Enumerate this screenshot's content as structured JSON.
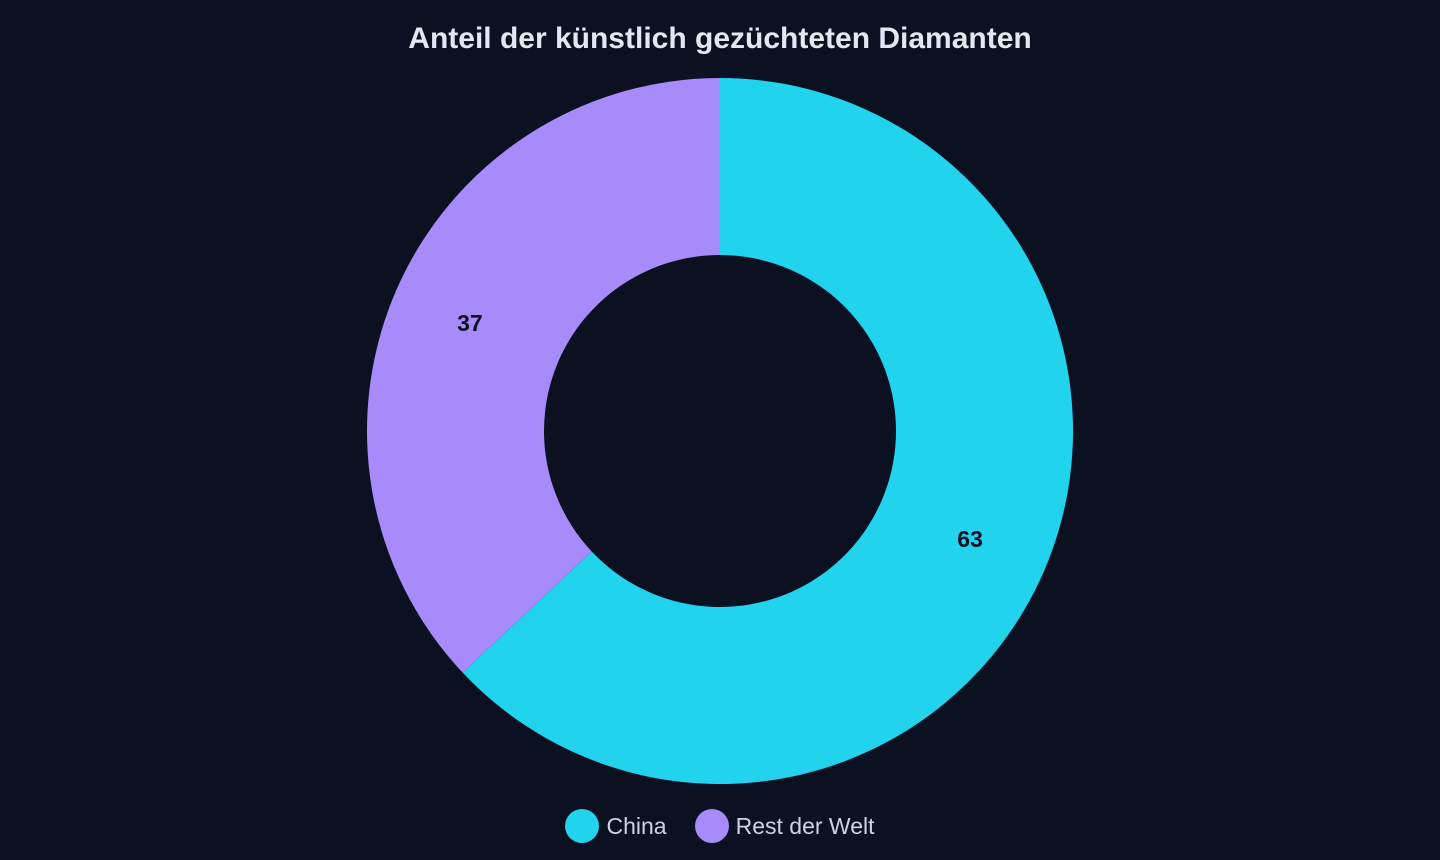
{
  "chart_data": {
    "type": "pie",
    "title": "Anteil der künstlich gezüchteten Diamanten",
    "categories": [
      "China",
      "Rest der Welt"
    ],
    "values": [
      63,
      37
    ],
    "colors": [
      "#22d3ee",
      "#a78bfa"
    ],
    "legend_position": "bottom",
    "hole": "donut"
  }
}
